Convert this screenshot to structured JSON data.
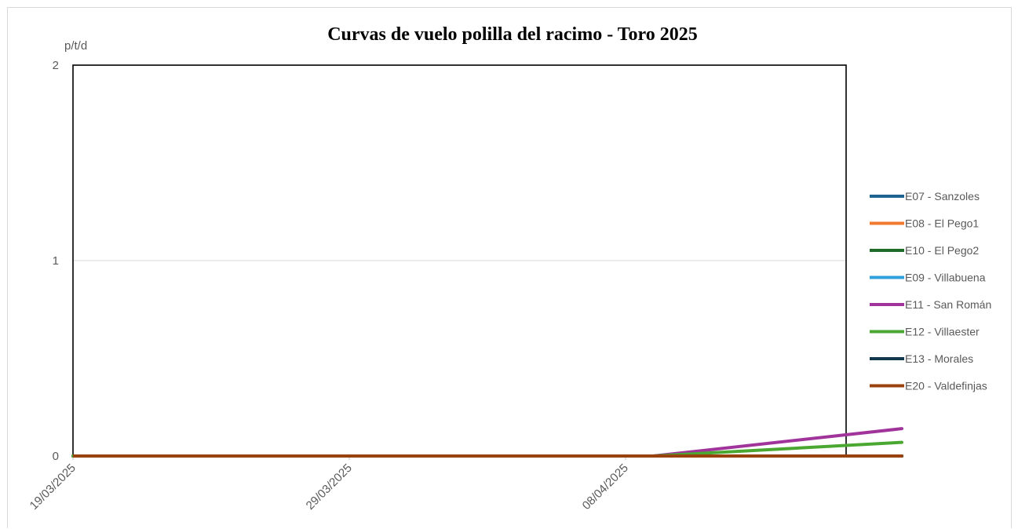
{
  "chart_data": {
    "type": "line",
    "title": "Curvas de vuelo polilla del racimo - Toro 2025",
    "ylabel": "p/t/d",
    "xlabel": "",
    "ylim": [
      0,
      2
    ],
    "yticks": [
      "0",
      "1",
      "2"
    ],
    "x": [
      "19/03/2025",
      "09/04/2025",
      "18/04/2025"
    ],
    "xticks": [
      "19/03/2025",
      "29/03/2025",
      "08/04/2025"
    ],
    "grid": true,
    "legend": "right",
    "series": [
      {
        "name": "E07 - Sanzoles",
        "color": "#1f6391",
        "values": [
          0,
          0,
          0
        ]
      },
      {
        "name": "E08 - El Pego1",
        "color": "#f07a30",
        "values": [
          0,
          0,
          0
        ]
      },
      {
        "name": "E10 - El Pego2",
        "color": "#1e6b2a",
        "values": [
          0,
          0,
          0
        ]
      },
      {
        "name": "E09 - Villabuena",
        "color": "#2ea1dd",
        "values": [
          0,
          0,
          0
        ]
      },
      {
        "name": "E11 - San Román",
        "color": "#a0349b",
        "values": [
          0,
          0,
          0.14
        ]
      },
      {
        "name": "E12 - Villaester",
        "color": "#4aa832",
        "values": [
          0,
          0,
          0.07
        ]
      },
      {
        "name": "E13 - Morales",
        "color": "#123850",
        "values": [
          0,
          0,
          0
        ]
      },
      {
        "name": "E20 - Valdefinjas",
        "color": "#99420e",
        "values": [
          0,
          0,
          0
        ]
      }
    ]
  }
}
